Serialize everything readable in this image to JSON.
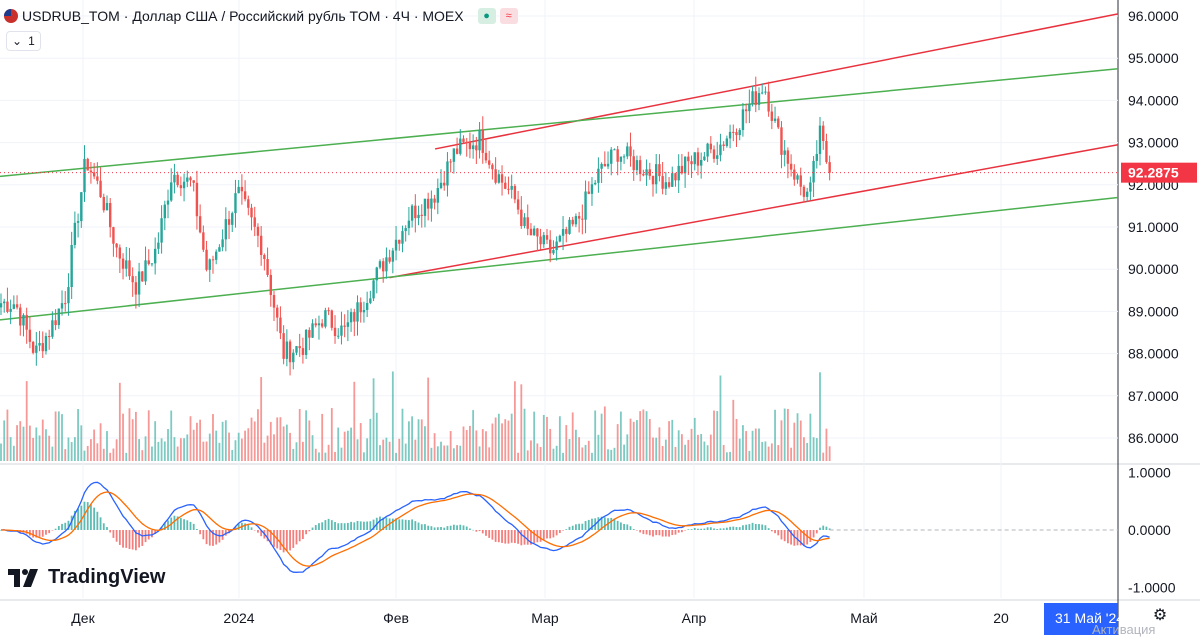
{
  "header": {
    "symbol": "USDRUB_TOM",
    "description": "· Доллар США / Российский рубль TOM · 4Ч · MOEX",
    "btn_green": "●",
    "btn_red": "≈"
  },
  "indicator_toggle": {
    "chevron": "⌄",
    "count": "1"
  },
  "branding": {
    "logo_text": "TradingView"
  },
  "watermark": "Активация",
  "colors": {
    "bull": "#26a69a",
    "bear": "#ef5350",
    "channel_red": "#e8333f",
    "channel_green": "#4caf50",
    "macd": "#2962ff",
    "signal": "#ff6d00",
    "price_tag": "#f23645",
    "date_tag": "#2962ff"
  },
  "price_tag": "92.2875",
  "date_tag": "31 Май '24",
  "chart_data": {
    "type": "candlestick",
    "instrument": "USDRUB_TOM",
    "timeframe": "4Ч",
    "exchange": "MOEX",
    "x_ticks": [
      "Дек",
      "2024",
      "Фев",
      "Мар",
      "Апр",
      "Май",
      "20"
    ],
    "y_ticks": [
      "96.0000",
      "95.0000",
      "94.0000",
      "93.0000",
      "92.0000",
      "91.0000",
      "90.0000",
      "89.0000",
      "88.0000",
      "87.0000",
      "86.0000"
    ],
    "ylim": [
      85.45,
      96.3
    ],
    "last_price": 92.2875,
    "osc_ticks": [
      "1.0000",
      "0.0000",
      "-1.0000"
    ],
    "osc_lim": [
      -1.35,
      1.2
    ],
    "price_path": [
      [
        "2023-11-21",
        89.2
      ],
      [
        "2023-11-25",
        88.0
      ],
      [
        "2023-11-28",
        88.6
      ],
      [
        "2023-12-01",
        89.4
      ],
      [
        "2023-12-05",
        92.6
      ],
      [
        "2023-12-08",
        91.8
      ],
      [
        "2023-12-11",
        90.5
      ],
      [
        "2023-12-15",
        89.6
      ],
      [
        "2023-12-19",
        90.5
      ],
      [
        "2023-12-22",
        92.3
      ],
      [
        "2023-12-26",
        92.0
      ],
      [
        "2023-12-29",
        89.9
      ],
      [
        "2024-01-04",
        91.8
      ],
      [
        "2024-01-09",
        90.5
      ],
      [
        "2024-01-13",
        88.0
      ],
      [
        "2024-01-17",
        88.2
      ],
      [
        "2024-01-21",
        88.9
      ],
      [
        "2024-01-25",
        88.5
      ],
      [
        "2024-01-29",
        89.3
      ],
      [
        "2024-02-02",
        90.2
      ],
      [
        "2024-02-07",
        91.3
      ],
      [
        "2024-02-12",
        91.8
      ],
      [
        "2024-02-16",
        92.8
      ],
      [
        "2024-02-21",
        93.1
      ],
      [
        "2024-02-24",
        92.3
      ],
      [
        "2024-02-28",
        91.6
      ],
      [
        "2024-03-01",
        90.9
      ],
      [
        "2024-03-06",
        90.4
      ],
      [
        "2024-03-11",
        91.1
      ],
      [
        "2024-03-15",
        92.2
      ],
      [
        "2024-03-19",
        92.8
      ],
      [
        "2024-03-24",
        92.4
      ],
      [
        "2024-03-29",
        92.1
      ],
      [
        "2024-04-02",
        92.5
      ],
      [
        "2024-04-08",
        92.9
      ],
      [
        "2024-04-12",
        93.5
      ],
      [
        "2024-04-17",
        94.4
      ],
      [
        "2024-04-20",
        93.1
      ],
      [
        "2024-04-24",
        92.0
      ],
      [
        "2024-04-26",
        91.7
      ],
      [
        "2024-04-28",
        93.2
      ],
      [
        "2024-04-30",
        92.3
      ]
    ],
    "trendlines": [
      {
        "color": "red",
        "from": [
          "2024-02-12",
          92.85
        ],
        "to": [
          "2024-06-26",
          96.05
        ]
      },
      {
        "color": "green",
        "from": [
          "2023-11-18",
          92.2
        ],
        "to": [
          "2024-06-26",
          94.75
        ]
      },
      {
        "color": "red",
        "from": [
          "2024-02-03",
          89.8
        ],
        "to": [
          "2024-06-26",
          92.95
        ]
      },
      {
        "color": "green",
        "from": [
          "2023-11-18",
          88.8
        ],
        "to": [
          "2024-06-26",
          91.7
        ]
      }
    ],
    "oscillator": {
      "series": [
        "MACD",
        "Signal",
        "Histogram"
      ]
    }
  }
}
